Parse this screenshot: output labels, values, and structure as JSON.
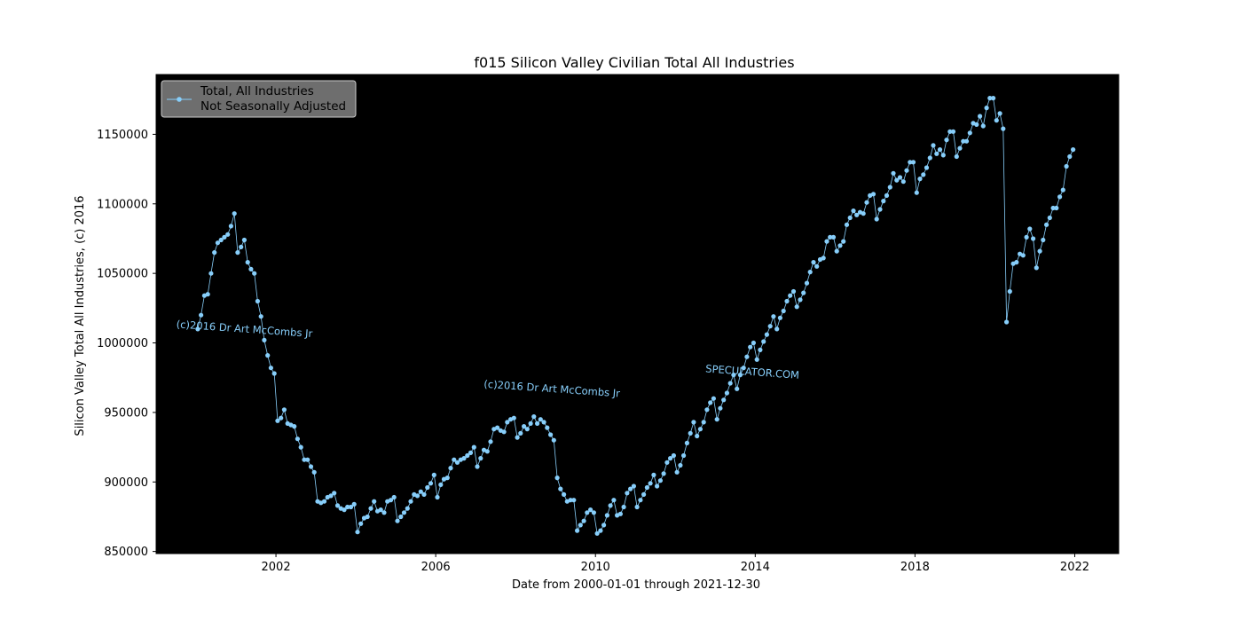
{
  "chart_data": {
    "type": "line",
    "title": "f015 Silicon Valley Civilian Total All Industries",
    "xlabel": "Date from 2000-01-01 through 2021-12-30",
    "ylabel": "Silicon Valley Total All Industries, (c) 2016",
    "x_ticks": [
      2002,
      2006,
      2010,
      2014,
      2018,
      2022
    ],
    "y_ticks": [
      850000,
      900000,
      950000,
      1000000,
      1050000,
      1100000,
      1150000
    ],
    "y_tick_labels": [
      "850000",
      "900000",
      "950000",
      "1000000",
      "1050000",
      "1100000",
      "1150000"
    ],
    "x_tick_labels": [
      "2002",
      "2006",
      "2010",
      "2014",
      "2018",
      "2022"
    ],
    "xlim": [
      1999,
      2023.1
    ],
    "ylim": [
      848500,
      1193000
    ],
    "grid": false,
    "background": "#000000",
    "line_color": "#87cefa",
    "legend": {
      "placement": "upper-left",
      "entry_line1": "Total, All Industries",
      "entry_line2": "Not Seasonally Adjusted",
      "box_color": "#6e6e6e"
    },
    "annotations": [
      {
        "text": "(c)2016 Dr Art McCombs Jr",
        "x": 1999.5,
        "y": 1011000,
        "angle": 4,
        "color": "#87cefa"
      },
      {
        "text": "(c)2016 Dr Art McCombs Jr",
        "x": 2007.2,
        "y": 968000,
        "angle": 4,
        "color": "#87cefa"
      },
      {
        "text": "SPECULATOR.COM",
        "x": 2012.75,
        "y": 979000,
        "angle": 4,
        "color": "#87cefa"
      }
    ],
    "series": [
      {
        "name": "Total, All Industries Not Seasonally Adjusted",
        "start_year": 2000,
        "values": [
          1010000,
          1020000,
          1034000,
          1035000,
          1050000,
          1065000,
          1072000,
          1074000,
          1076000,
          1078000,
          1084000,
          1093000,
          1065000,
          1069000,
          1074000,
          1058000,
          1053000,
          1050000,
          1030000,
          1019000,
          1002000,
          991000,
          982000,
          978000,
          944000,
          946000,
          952000,
          942000,
          941000,
          940000,
          931000,
          925000,
          916000,
          916000,
          911000,
          907000,
          886000,
          885000,
          886000,
          889000,
          890000,
          892000,
          883000,
          881000,
          880000,
          882000,
          882000,
          884000,
          864000,
          870000,
          874000,
          875000,
          881000,
          886000,
          879000,
          880000,
          878000,
          886000,
          887000,
          889000,
          872000,
          875000,
          878000,
          881000,
          886000,
          891000,
          890000,
          893000,
          891000,
          896000,
          899000,
          905000,
          889000,
          898000,
          902000,
          903000,
          910000,
          916000,
          914000,
          916000,
          917000,
          919000,
          921000,
          925000,
          911000,
          917000,
          923000,
          922000,
          929000,
          938000,
          939000,
          937000,
          936000,
          943000,
          945000,
          946000,
          932000,
          935000,
          940000,
          938000,
          942000,
          947000,
          942000,
          945000,
          943000,
          939000,
          934000,
          930000,
          903000,
          895000,
          891000,
          886000,
          887000,
          887000,
          865000,
          869000,
          872000,
          878000,
          880000,
          878000,
          863000,
          865000,
          869000,
          876000,
          883000,
          887000,
          876000,
          877000,
          882000,
          892000,
          895000,
          897000,
          882000,
          887000,
          891000,
          896000,
          899000,
          905000,
          897000,
          901000,
          906000,
          914000,
          917000,
          919000,
          907000,
          912000,
          919000,
          928000,
          935000,
          943000,
          933000,
          938000,
          943000,
          952000,
          957000,
          960000,
          945000,
          953000,
          959000,
          964000,
          971000,
          977000,
          967000,
          977000,
          982000,
          990000,
          997000,
          1000000,
          988000,
          995000,
          1001000,
          1006000,
          1012000,
          1019000,
          1010000,
          1018000,
          1023000,
          1030000,
          1034000,
          1037000,
          1026000,
          1031000,
          1036000,
          1043000,
          1051000,
          1058000,
          1055000,
          1060000,
          1061000,
          1073000,
          1076000,
          1076000,
          1066000,
          1070000,
          1073000,
          1085000,
          1090000,
          1095000,
          1092000,
          1094000,
          1093000,
          1101000,
          1106000,
          1107000,
          1089000,
          1096000,
          1102000,
          1106000,
          1112000,
          1122000,
          1117000,
          1119000,
          1116000,
          1124000,
          1130000,
          1130000,
          1108000,
          1118000,
          1121000,
          1126000,
          1133000,
          1142000,
          1136000,
          1139000,
          1135000,
          1146000,
          1152000,
          1152000,
          1134000,
          1140000,
          1145000,
          1145000,
          1151000,
          1158000,
          1157000,
          1163000,
          1156000,
          1169000,
          1176000,
          1176000,
          1160000,
          1165000,
          1154000,
          1015000,
          1037000,
          1057000,
          1058000,
          1064000,
          1063000,
          1076000,
          1082000,
          1075000,
          1054000,
          1066000,
          1074000,
          1085000,
          1090000,
          1097000,
          1097000,
          1105000,
          1110000,
          1127000,
          1134000,
          1139000
        ]
      }
    ]
  }
}
